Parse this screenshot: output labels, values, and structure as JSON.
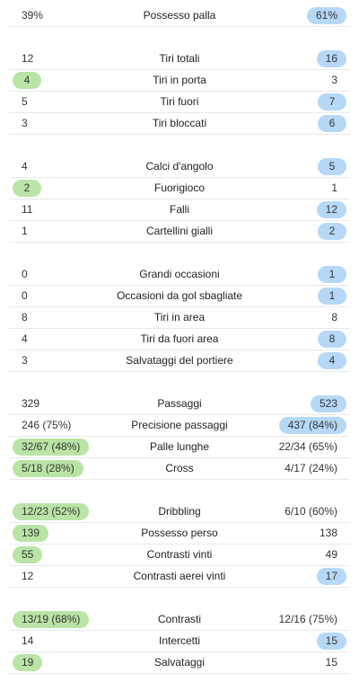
{
  "colors": {
    "home_highlight": "#b9e4a6",
    "away_highlight": "#b6d8f7"
  },
  "groups": [
    {
      "rows": [
        {
          "label": "Possesso palla",
          "home": "39%",
          "away": "61%",
          "win": "away"
        }
      ]
    },
    {
      "rows": [
        {
          "label": "Tiri totali",
          "home": "12",
          "away": "16",
          "win": "away"
        },
        {
          "label": "Tiri in porta",
          "home": "4",
          "away": "3",
          "win": "home"
        },
        {
          "label": "Tiri fuori",
          "home": "5",
          "away": "7",
          "win": "away"
        },
        {
          "label": "Tiri bloccati",
          "home": "3",
          "away": "6",
          "win": "away"
        }
      ]
    },
    {
      "rows": [
        {
          "label": "Calci d'angolo",
          "home": "4",
          "away": "5",
          "win": "away"
        },
        {
          "label": "Fuorigioco",
          "home": "2",
          "away": "1",
          "win": "home"
        },
        {
          "label": "Falli",
          "home": "11",
          "away": "12",
          "win": "away"
        },
        {
          "label": "Cartellini gialli",
          "home": "1",
          "away": "2",
          "win": "away"
        }
      ]
    },
    {
      "rows": [
        {
          "label": "Grandi occasioni",
          "home": "0",
          "away": "1",
          "win": "away"
        },
        {
          "label": "Occasioni da gol sbagliate",
          "home": "0",
          "away": "1",
          "win": "away"
        },
        {
          "label": "Tiri in area",
          "home": "8",
          "away": "8",
          "win": "none"
        },
        {
          "label": "Tiri da fuori area",
          "home": "4",
          "away": "8",
          "win": "away"
        },
        {
          "label": "Salvataggi del portiere",
          "home": "3",
          "away": "4",
          "win": "away"
        }
      ]
    },
    {
      "rows": [
        {
          "label": "Passaggi",
          "home": "329",
          "away": "523",
          "win": "away"
        },
        {
          "label": "Precisione passaggi",
          "home": "246 (75%)",
          "away": "437 (84%)",
          "win": "away"
        },
        {
          "label": "Palle lunghe",
          "home": "32/67 (48%)",
          "away": "22/34 (65%)",
          "win": "home"
        },
        {
          "label": "Cross",
          "home": "5/18 (28%)",
          "away": "4/17 (24%)",
          "win": "home"
        }
      ]
    },
    {
      "rows": [
        {
          "label": "Dribbling",
          "home": "12/23 (52%)",
          "away": "6/10 (60%)",
          "win": "home"
        },
        {
          "label": "Possesso perso",
          "home": "139",
          "away": "138",
          "win": "home"
        },
        {
          "label": "Contrasti vinti",
          "home": "55",
          "away": "49",
          "win": "home"
        },
        {
          "label": "Contrasti aerei vinti",
          "home": "12",
          "away": "17",
          "win": "away"
        }
      ]
    },
    {
      "rows": [
        {
          "label": "Contrasti",
          "home": "13/19 (68%)",
          "away": "12/16 (75%)",
          "win": "home"
        },
        {
          "label": "Intercetti",
          "home": "14",
          "away": "15",
          "win": "away"
        },
        {
          "label": "Salvataggi",
          "home": "19",
          "away": "15",
          "win": "home"
        }
      ]
    }
  ]
}
